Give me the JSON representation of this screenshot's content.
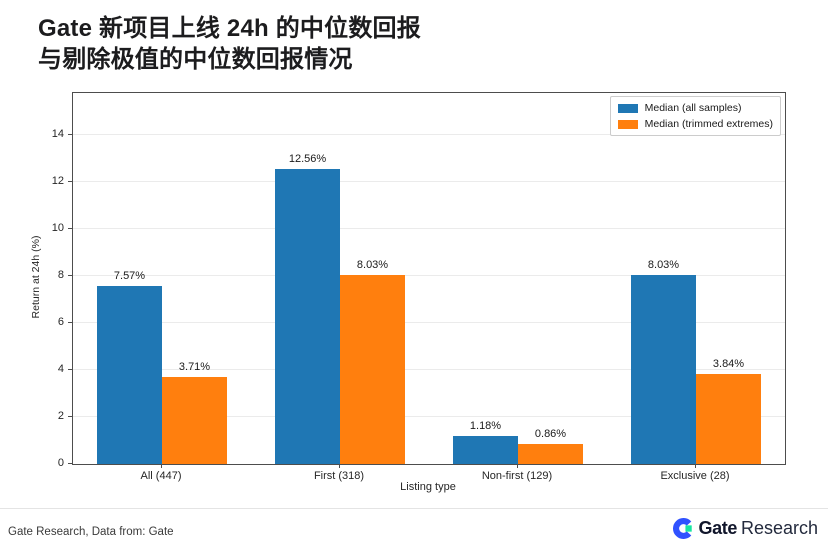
{
  "title": {
    "line1": "Gate 新项目上线 24h 的中位数回报",
    "line2": "与剔除极值的中位数回报情况"
  },
  "chart_data": {
    "type": "bar",
    "categories": [
      "All (447)",
      "First (318)",
      "Non-first (129)",
      "Exclusive (28)"
    ],
    "series": [
      {
        "name": "Median (all samples)",
        "color": "#1f77b4",
        "values": [
          7.57,
          12.56,
          1.18,
          8.03
        ],
        "display_values": [
          "7.57%",
          "12.56%",
          "1.18%",
          "8.03%"
        ]
      },
      {
        "name": "Median (trimmed extremes)",
        "color": "#ff7f0e",
        "values": [
          3.71,
          8.03,
          0.86,
          3.84
        ],
        "display_values": [
          "3.71%",
          "8.03%",
          "0.86%",
          "3.84%"
        ]
      }
    ],
    "xlabel": "Listing type",
    "ylabel": "Return at 24h (%)",
    "ylim": [
      0,
      15.8
    ],
    "yticks": [
      0,
      2,
      4,
      6,
      8,
      10,
      12,
      14
    ],
    "grid": true,
    "legend_position": "upper-right"
  },
  "footer": {
    "source_text": "Gate Research, Data from: Gate",
    "brand": {
      "bold": "Gate",
      "regular": "Research"
    }
  },
  "colors": {
    "bar_blue": "#1f77b4",
    "bar_orange": "#ff7f0e",
    "grid": "#ebebeb",
    "spine": "#4d4d4d",
    "logo_blue": "#3052ff",
    "logo_teal": "#17e6a1"
  }
}
